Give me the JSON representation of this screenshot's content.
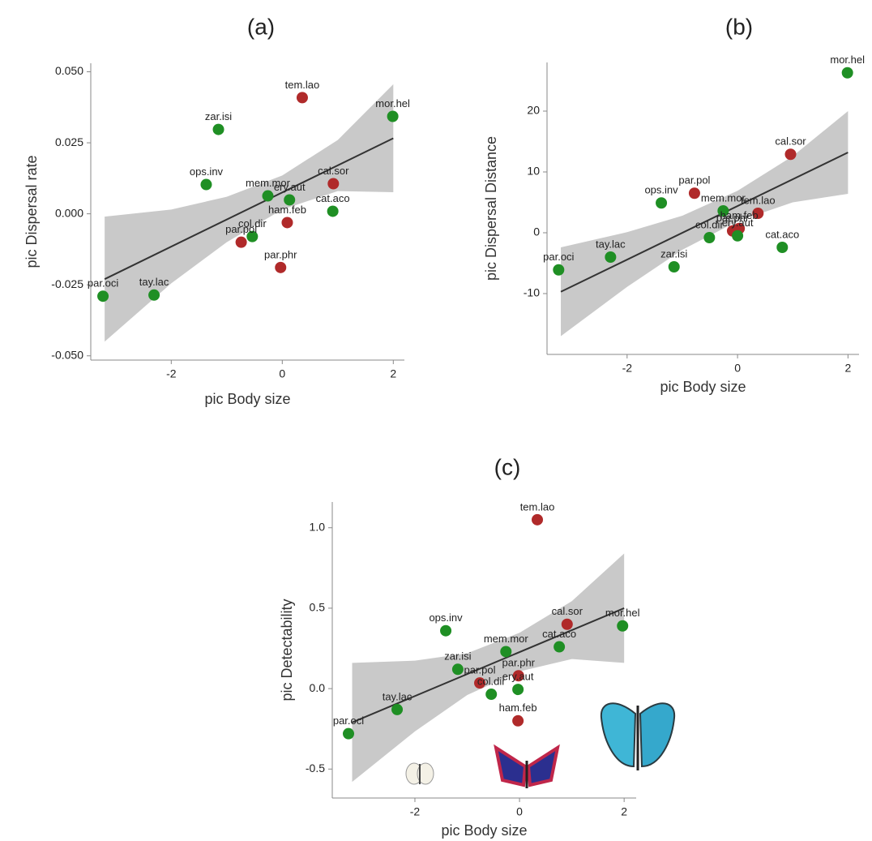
{
  "chart_data": [
    {
      "type": "scatter",
      "title": "(a)",
      "x_label": "pic Body size",
      "y_label": "pic Dispersal rate",
      "point_labels": [
        "par.oci",
        "tay.lac",
        "zar.isi",
        "ops.inv",
        "mem.mor",
        "ery.aut",
        "cal.sor",
        "cat.aco",
        "tem.lao",
        "mor.hel",
        "ham.feb",
        "col.dir",
        "par.pol",
        "par.phr"
      ],
      "x": [
        -3.23,
        -2.31,
        -1.15,
        -1.37,
        -0.26,
        0.13,
        0.92,
        0.91,
        0.36,
        1.99,
        0.09,
        -0.54,
        -0.74,
        -0.03
      ],
      "values": [
        -0.029,
        -0.0286,
        0.0297,
        0.0103,
        0.0063,
        0.0049,
        0.0106,
        0.0009,
        0.0409,
        0.0343,
        -0.0031,
        -0.008,
        -0.01,
        -0.0189
      ],
      "point_colors": [
        "#1f8f24",
        "#1f8f24",
        "#1f8f24",
        "#1f8f24",
        "#1f8f24",
        "#1f8f24",
        "#b02a2a",
        "#1f8f24",
        "#b02a2a",
        "#1f8f24",
        "#b02a2a",
        "#1f8f24",
        "#b02a2a",
        "#b02a2a"
      ],
      "fit": {
        "x": [
          -3.2,
          2
        ],
        "y": [
          -0.023,
          0.0266
        ]
      },
      "band": {
        "x": [
          -3.2,
          -2,
          -1,
          0,
          1,
          2
        ],
        "upper": [
          -0.001,
          0.0015,
          0.006,
          0.0135,
          0.026,
          0.0456
        ],
        "lower": [
          -0.045,
          -0.0245,
          -0.01,
          0.0015,
          0.008,
          0.0076
        ]
      },
      "xlim": [
        -3.45,
        2.2
      ],
      "ylim": [
        -0.0515,
        0.053
      ],
      "xticks": [
        -2,
        0,
        2
      ],
      "yticks": [
        {
          "value": 0.05,
          "label": "0.050"
        },
        0.025,
        {
          "value": 0,
          "label": "0.000"
        },
        -0.025,
        {
          "value": -0.05,
          "label": "-0.050"
        }
      ]
    },
    {
      "type": "scatter",
      "title": "(b)",
      "x_label": "pic Body size",
      "y_label": "pic Dispersal Distance",
      "point_labels": [
        "mor.hel",
        "cal.sor",
        "ops.inv",
        "par.pol",
        "mem.mor",
        "tem.lao",
        "col.dir",
        "par.phr",
        "ham.feb",
        "ery.aut",
        "cat.aco",
        "tay.lac",
        "zar.isi",
        "par.oci"
      ],
      "x": [
        1.99,
        0.96,
        -1.38,
        -0.78,
        -0.26,
        0.37,
        -0.51,
        -0.09,
        0.03,
        0.0,
        0.81,
        -2.3,
        -1.15,
        -3.24
      ],
      "values": [
        26.3,
        12.9,
        4.9,
        6.5,
        3.6,
        3.2,
        -0.8,
        0.3,
        0.7,
        -0.5,
        -2.4,
        -4.0,
        -5.6,
        -6.1
      ],
      "point_colors": [
        "#1f8f24",
        "#b02a2a",
        "#1f8f24",
        "#b02a2a",
        "#1f8f24",
        "#b02a2a",
        "#1f8f24",
        "#b02a2a",
        "#b02a2a",
        "#1f8f24",
        "#1f8f24",
        "#1f8f24",
        "#1f8f24",
        "#1f8f24"
      ],
      "fit": {
        "x": [
          -3.2,
          2
        ],
        "y": [
          -9.7,
          13.2
        ]
      },
      "band": {
        "x": [
          -3.2,
          -2,
          -1,
          0,
          1,
          2
        ],
        "upper": [
          -2.4,
          0.1,
          2.8,
          6.9,
          12.6,
          20.0
        ],
        "lower": [
          -17.0,
          -8.9,
          -2.8,
          1.9,
          5.0,
          6.4
        ]
      },
      "xlim": [
        -3.45,
        2.2
      ],
      "ylim": [
        -20,
        28
      ],
      "xticks": [
        -2,
        0,
        2
      ],
      "yticks": [
        20,
        10,
        0,
        -10
      ]
    },
    {
      "type": "scatter",
      "title": "(c)",
      "x_label": "pic Body size",
      "y_label": "pic Detectability",
      "point_labels": [
        "tem.lao",
        "cal.sor",
        "mor.hel",
        "ops.inv",
        "cat.aco",
        "mem.mor",
        "zar.isi",
        "par.phr",
        "par.pol",
        "ery.aut",
        "col.dir",
        "tay.lac",
        "ham.feb",
        "par.oci"
      ],
      "x": [
        0.34,
        0.91,
        1.97,
        -1.41,
        0.76,
        -0.26,
        -1.18,
        -0.02,
        -0.76,
        -0.03,
        -0.54,
        -2.34,
        -0.03,
        -3.27
      ],
      "values": [
        1.05,
        0.4,
        0.39,
        0.36,
        0.26,
        0.23,
        0.12,
        0.08,
        0.035,
        -0.005,
        -0.035,
        -0.13,
        -0.2,
        -0.28
      ],
      "point_colors": [
        "#b02a2a",
        "#b02a2a",
        "#1f8f24",
        "#1f8f24",
        "#1f8f24",
        "#1f8f24",
        "#1f8f24",
        "#b02a2a",
        "#b02a2a",
        "#1f8f24",
        "#1f8f24",
        "#1f8f24",
        "#b02a2a",
        "#1f8f24"
      ],
      "fit": {
        "x": [
          -3.2,
          2
        ],
        "y": [
          -0.21,
          0.5
        ]
      },
      "band": {
        "x": [
          -3.2,
          -2,
          -1,
          0,
          1,
          2
        ],
        "upper": [
          0.16,
          0.174,
          0.22,
          0.347,
          0.544,
          0.84
        ],
        "lower": [
          -0.58,
          -0.266,
          -0.04,
          0.107,
          0.184,
          0.16
        ]
      },
      "xlim": [
        -3.58,
        2.23
      ],
      "ylim": [
        -0.68,
        1.16
      ],
      "xticks": [
        -2,
        0,
        2
      ],
      "yticks": [
        {
          "value": 1,
          "label": "1.0"
        },
        0.5,
        {
          "value": 0,
          "label": "0.0"
        },
        -0.5
      ]
    }
  ]
}
